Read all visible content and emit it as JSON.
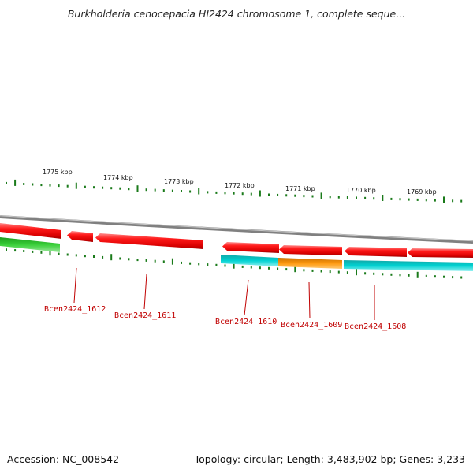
{
  "title": "Burkholderia cenocepacia HI2424 chromosome 1, complete seque...",
  "footer": {
    "accession": "Accession: NC_008542",
    "topology": "Topology: circular; Length: 3,483,902 bp; Genes: 3,233"
  },
  "scale_labels": [
    "1775 kbp",
    "1774 kbp",
    "1773 kbp",
    "1772 kbp",
    "1771 kbp",
    "1770 kbp",
    "1769 kbp"
  ],
  "gene_labels": [
    "Bcen2424_1612",
    "Bcen2424_1611",
    "Bcen2424_1610",
    "Bcen2424_1609",
    "Bcen2424_1608"
  ],
  "colors": {
    "forward_gene": "#ee0000",
    "reverse_gene_cyan": "#00c8c8",
    "reverse_gene_orange": "#ff9900",
    "reverse_gene_green": "#33cc33",
    "backbone": "#888888",
    "ticks": "#1a7a1a",
    "label": "#c00000"
  }
}
